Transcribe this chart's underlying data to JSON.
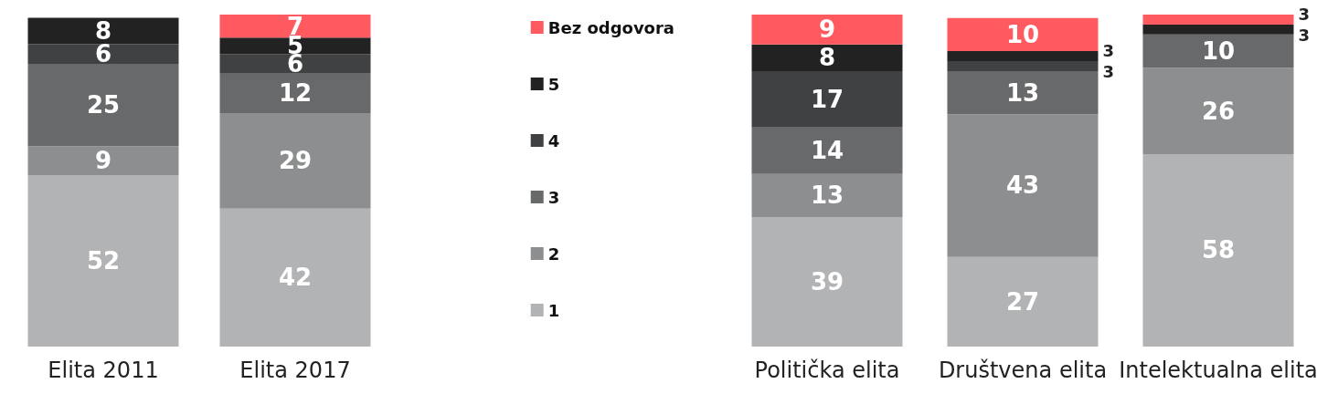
{
  "chart_data": [
    {
      "type": "bar",
      "stacked": true,
      "categories": [
        "Elita 2011",
        "Elita 2017"
      ],
      "data_labels": true,
      "tick_labels": "x",
      "grid": false,
      "legend": "right",
      "series": [
        {
          "name": "1",
          "color": "#b2b3b5",
          "values": [
            52,
            42
          ]
        },
        {
          "name": "2",
          "color": "#8c8e90",
          "values": [
            9,
            29
          ]
        },
        {
          "name": "3",
          "color": "#68696b",
          "values": [
            25,
            12
          ]
        },
        {
          "name": "4",
          "color": "#404143",
          "values": [
            6,
            6
          ]
        },
        {
          "name": "5",
          "color": "#222222",
          "values": [
            8,
            5
          ]
        },
        {
          "name": "Bez odgovora",
          "color": "#ff5a5f",
          "values": [
            null,
            7
          ]
        }
      ]
    },
    {
      "type": "bar",
      "stacked": true,
      "categories": [
        "Politička elita",
        "Društvena elita",
        "Intelektualna elita"
      ],
      "data_labels": true,
      "tick_labels": "x",
      "grid": false,
      "legend": false,
      "series": [
        {
          "color": "#b2b3b5",
          "values": [
            39,
            27,
            58
          ]
        },
        {
          "color": "#8c8e90",
          "values": [
            13,
            43,
            26
          ]
        },
        {
          "color": "#68696b",
          "values": [
            14,
            13,
            10
          ]
        },
        {
          "color": "#404143",
          "values": [
            17,
            3,
            null
          ]
        },
        {
          "color": "#222222",
          "values": [
            8,
            3,
            3
          ]
        },
        {
          "color": "#ff5a5f",
          "values": [
            9,
            10,
            3
          ]
        }
      ]
    }
  ]
}
